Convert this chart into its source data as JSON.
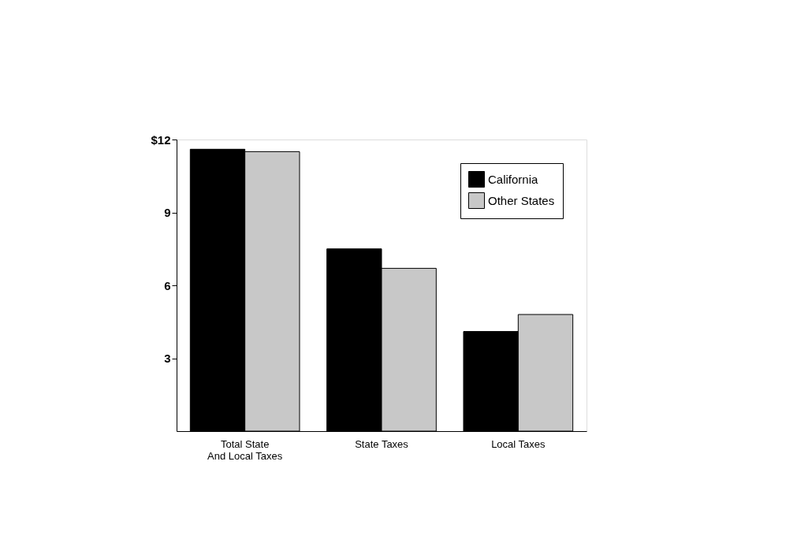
{
  "chart_data": {
    "type": "bar",
    "categories": [
      "Total State\nAnd Local Taxes",
      "State Taxes",
      "Local Taxes"
    ],
    "series": [
      {
        "name": "California",
        "color": "#000000",
        "values": [
          11.6,
          7.5,
          4.1
        ]
      },
      {
        "name": "Other States",
        "color": "#c8c8c8",
        "values": [
          11.5,
          6.7,
          4.8
        ]
      }
    ],
    "ylim": [
      0,
      12
    ],
    "yticks": [
      3,
      6,
      9,
      {
        "value": 12,
        "label": "$12"
      }
    ],
    "grid": false,
    "legend": "top right"
  }
}
